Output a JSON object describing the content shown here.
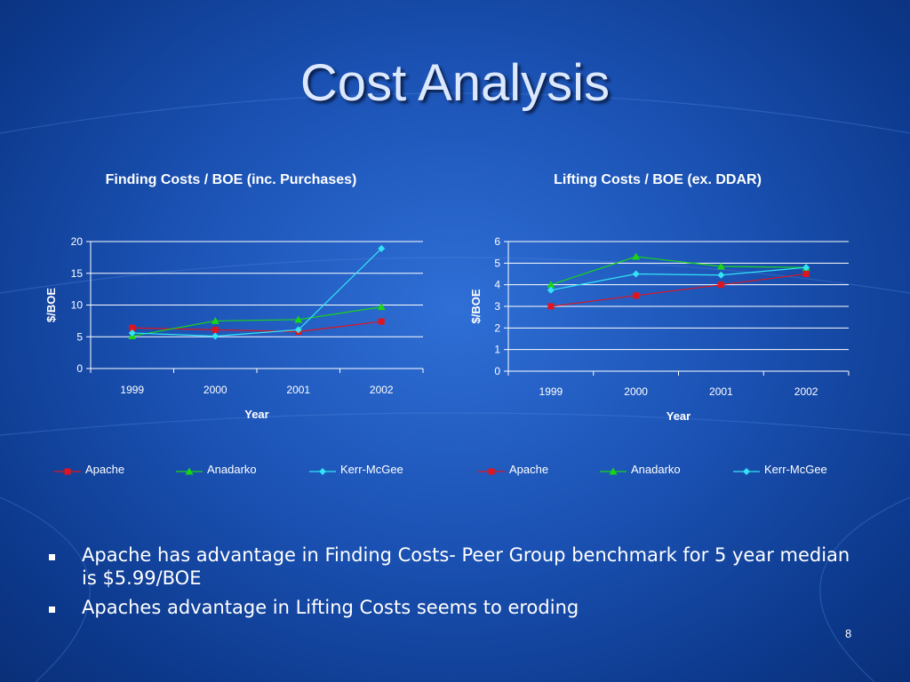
{
  "slide": {
    "title": "Cost Analysis",
    "page_number": "8",
    "bullets": [
      "Apache has advantage in Finding Costs- Peer Group benchmark for 5 year median is $5.99/BOE",
      "Apaches advantage in Lifting Costs seems to eroding"
    ]
  },
  "colors": {
    "Apache": "#e0141e",
    "Anadarko": "#19d419",
    "Kerr-McGee": "#33e3f5"
  },
  "chart_data": [
    {
      "type": "line",
      "title": "Finding Costs / BOE (inc. Purchases)",
      "xlabel": "Year",
      "ylabel": "$/BOE",
      "categories": [
        "1999",
        "2000",
        "2001",
        "2002"
      ],
      "ylim": [
        0,
        20
      ],
      "yticks": [
        "0",
        "5",
        "10",
        "15",
        "20"
      ],
      "grid": true,
      "legend_position": "bottom",
      "series": [
        {
          "name": "Apache",
          "marker": "square",
          "values": [
            6.4,
            6.1,
            5.8,
            7.4
          ]
        },
        {
          "name": "Anadarko",
          "marker": "triangle",
          "values": [
            5.1,
            7.5,
            7.7,
            9.7
          ]
        },
        {
          "name": "Kerr-McGee",
          "marker": "diamond",
          "values": [
            5.6,
            5.1,
            6.1,
            18.9
          ]
        }
      ]
    },
    {
      "type": "line",
      "title": "Lifting Costs / BOE (ex. DDAR)",
      "xlabel": "Year",
      "ylabel": "$/BOE",
      "categories": [
        "1999",
        "2000",
        "2001",
        "2002"
      ],
      "ylim": [
        0,
        6
      ],
      "yticks": [
        "0",
        "1",
        "2",
        "3",
        "4",
        "5",
        "6"
      ],
      "grid": true,
      "legend_position": "bottom",
      "series": [
        {
          "name": "Apache",
          "marker": "square",
          "values": [
            3.0,
            3.5,
            4.0,
            4.5
          ]
        },
        {
          "name": "Anadarko",
          "marker": "triangle",
          "values": [
            4.0,
            5.3,
            4.85,
            4.8
          ]
        },
        {
          "name": "Kerr-McGee",
          "marker": "diamond",
          "values": [
            3.75,
            4.5,
            4.45,
            4.8
          ]
        }
      ]
    }
  ]
}
